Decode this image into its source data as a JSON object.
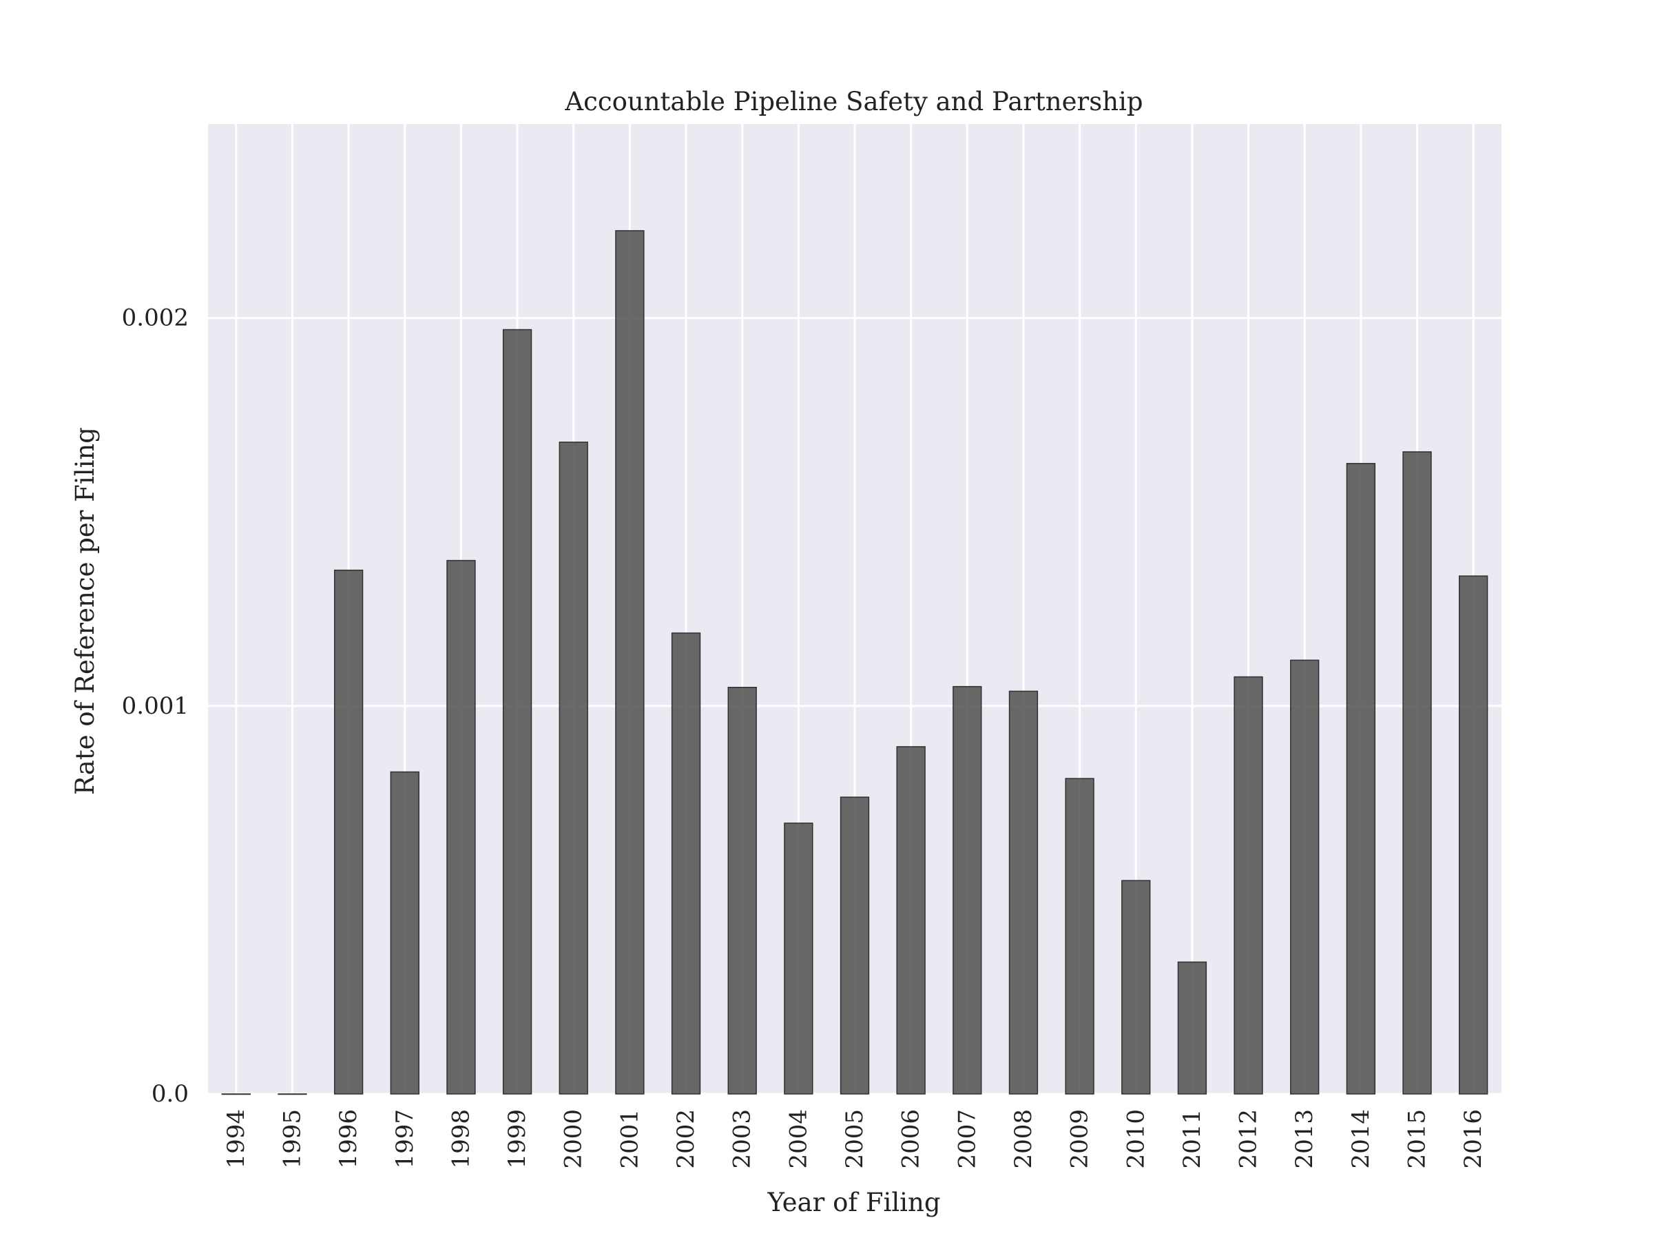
{
  "chart_data": {
    "type": "bar",
    "title": "Accountable Pipeline Safety and Partnership",
    "xlabel": "Year of Filing",
    "ylabel": "Rate of Reference per Filing",
    "categories": [
      "1994",
      "1995",
      "1996",
      "1997",
      "1998",
      "1999",
      "2000",
      "2001",
      "2002",
      "2003",
      "2004",
      "2005",
      "2006",
      "2007",
      "2008",
      "2009",
      "2010",
      "2011",
      "2012",
      "2013",
      "2014",
      "2015",
      "2016"
    ],
    "values": [
      0.0,
      0.0,
      0.00135,
      0.00083,
      0.001375,
      0.00197,
      0.00168,
      0.002225,
      0.001188,
      0.001048,
      0.000698,
      0.000765,
      0.000895,
      0.00105,
      0.001038,
      0.000813,
      0.00055,
      0.00034,
      0.001075,
      0.001118,
      0.001625,
      0.001655,
      0.001335
    ],
    "ylim": [
      0,
      0.0025
    ],
    "yticks": [
      0,
      0.001,
      0.002
    ],
    "ytick_labels": [
      "0.0",
      "0.001",
      "0.002"
    ],
    "grid": true,
    "colors": {
      "plot_background": "#eaeaf2",
      "grid": "#ffffff",
      "bar_fill": "#505050",
      "bar_stroke": "#303030"
    }
  }
}
